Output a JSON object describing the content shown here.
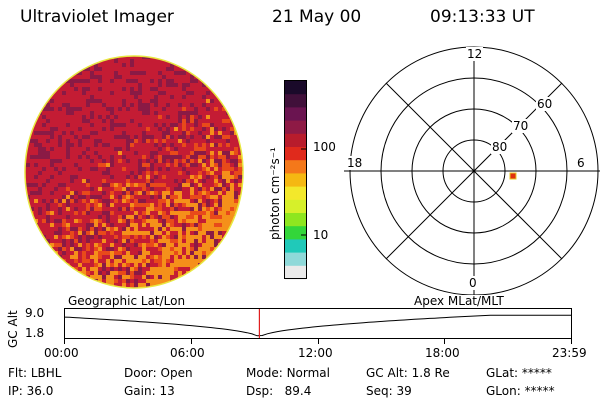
{
  "header": {
    "instrument": "Ultraviolet Imager",
    "date": "21 May 00",
    "time": "09:13:33 UT"
  },
  "colorbar": {
    "unit_label": "photon cm⁻²s⁻¹",
    "ticks": [
      "100",
      "10"
    ],
    "colors": [
      "#1a0a2a",
      "#40103a",
      "#6a1450",
      "#8e1a45",
      "#b81c2c",
      "#e02a1c",
      "#f4781a",
      "#f5b812",
      "#f3e82b",
      "#d6f02a",
      "#8ee61f",
      "#33d63a",
      "#20c9b9",
      "#8fd9d9",
      "#eaeaea"
    ]
  },
  "polar_grid": {
    "mlt_labels": {
      "top": "12",
      "left": "18",
      "right": "6",
      "bottom": "0"
    },
    "lat_labels": [
      "60",
      "70",
      "80"
    ],
    "marker_color": "#e03010"
  },
  "timeline": {
    "left_label": "Geographic Lat/Lon",
    "right_label": "Apex MLat/MLT",
    "axis_label": "GC Alt",
    "y_ticks": [
      "9.0",
      "1.8"
    ],
    "x_ticks": [
      "00:00",
      "06:00",
      "12:00",
      "18:00",
      "23:59"
    ],
    "current_time_hours": 9.2258,
    "marker_color": "#e02020"
  },
  "info": {
    "flt_label": "Flt:",
    "flt_value": "LBHL",
    "ip_label": "IP:",
    "ip_value": "36.0",
    "door_label": "Door:",
    "door_value": "Open",
    "gain_label": "Gain:",
    "gain_value": "13",
    "mode_label": "Mode:",
    "mode_value": "Normal",
    "dsp_label": "Dsp:",
    "dsp_value": "89.4",
    "gcalt_label": "GC Alt:",
    "gcalt_value": "1.8 Re",
    "seq_label": "Seq:",
    "seq_value": "39",
    "glat_label": "GLat:",
    "glat_value": "*****",
    "glon_label": "GLon:",
    "glon_value": "*****"
  },
  "image_colors": {
    "rim": "#e8e840",
    "base": "#c41c34",
    "dark": "#8a1a45",
    "bright": "#e84a1a",
    "hot": "#f5901a"
  }
}
